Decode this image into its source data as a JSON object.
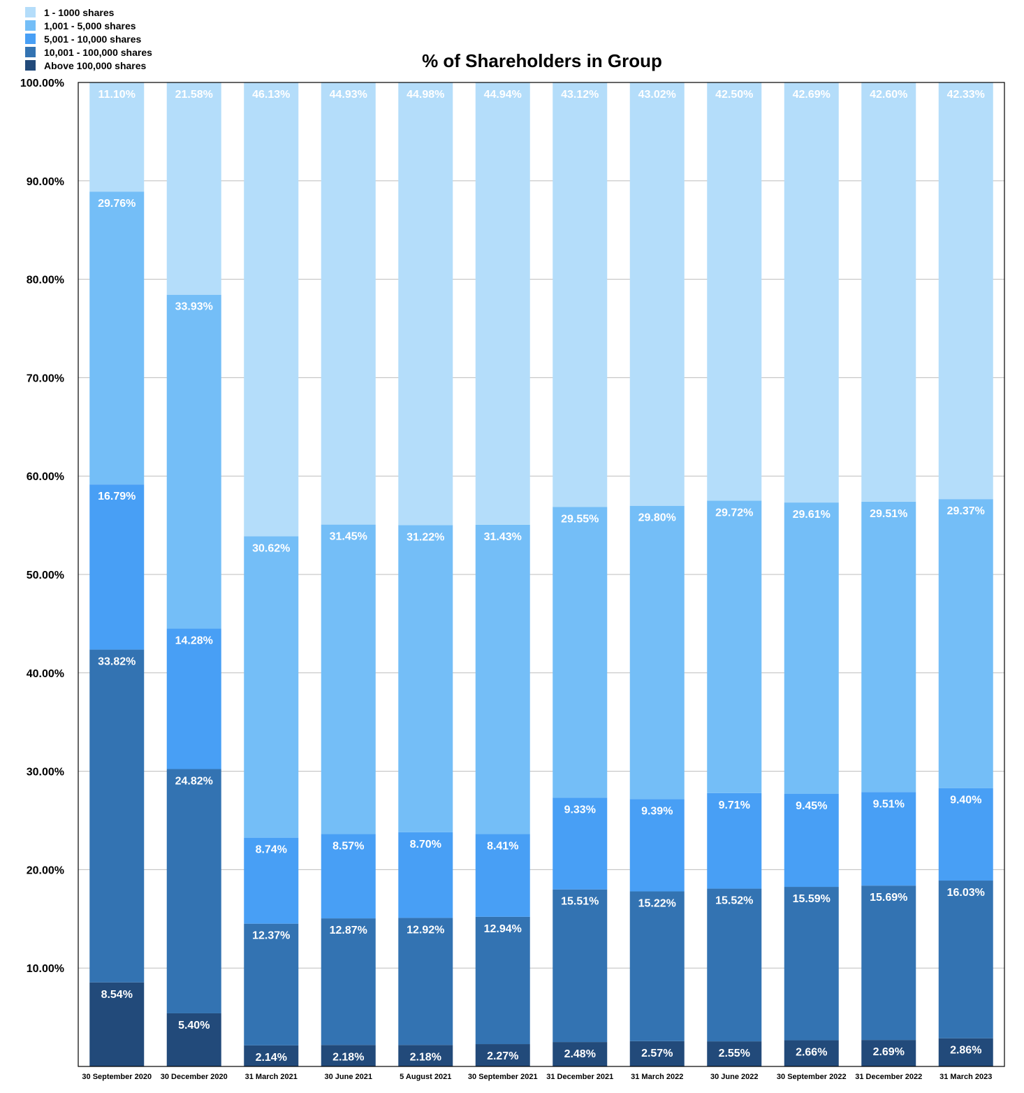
{
  "chart_data": {
    "type": "bar",
    "stacked": true,
    "title": "% of Shareholders in Group",
    "xlabel": "",
    "ylabel": "",
    "ylim": [
      0,
      100
    ],
    "yticks": [
      "10.00%",
      "20.00%",
      "30.00%",
      "40.00%",
      "50.00%",
      "60.00%",
      "70.00%",
      "80.00%",
      "90.00%",
      "100.00%"
    ],
    "grid": true,
    "legend_position": "top-left",
    "categories": [
      "30 September 2020",
      "30 December 2020",
      "31 March 2021",
      "30 June 2021",
      "5 August 2021",
      "30 September 2021",
      "31 December 2021",
      "31 March 2022",
      "30 June 2022",
      "30 September 2022",
      "31 December 2022",
      "31 March 2023"
    ],
    "series": [
      {
        "name": "Above 100,000 shares",
        "color": "#224A7A",
        "values": [
          8.54,
          5.4,
          2.14,
          2.18,
          2.18,
          2.27,
          2.48,
          2.57,
          2.55,
          2.66,
          2.69,
          2.86
        ],
        "labels": [
          "8.54%",
          "5.40%",
          "2.14%",
          "2.18%",
          "2.18%",
          "2.27%",
          "2.48%",
          "2.57%",
          "2.55%",
          "2.66%",
          "2.69%",
          "2.86%"
        ]
      },
      {
        "name": "10,001 - 100,000 shares",
        "color": "#3373B2",
        "values": [
          33.82,
          24.82,
          12.37,
          12.87,
          12.92,
          12.94,
          15.51,
          15.22,
          15.52,
          15.59,
          15.69,
          16.03
        ],
        "labels": [
          "33.82%",
          "24.82%",
          "12.37%",
          "12.87%",
          "12.92%",
          "12.94%",
          "15.51%",
          "15.22%",
          "15.52%",
          "15.59%",
          "15.69%",
          "16.03%"
        ]
      },
      {
        "name": "5,001 - 10,000 shares",
        "color": "#489FF5",
        "values": [
          16.79,
          14.28,
          8.74,
          8.57,
          8.7,
          8.41,
          9.33,
          9.39,
          9.71,
          9.45,
          9.51,
          9.4
        ],
        "labels": [
          "16.79%",
          "14.28%",
          "8.74%",
          "8.57%",
          "8.70%",
          "8.41%",
          "9.33%",
          "9.39%",
          "9.71%",
          "9.45%",
          "9.51%",
          "9.40%"
        ]
      },
      {
        "name": "1,001 - 5,000 shares",
        "color": "#74BEF7",
        "values": [
          29.76,
          33.93,
          30.62,
          31.45,
          31.22,
          31.43,
          29.55,
          29.8,
          29.72,
          29.61,
          29.51,
          29.37
        ],
        "labels": [
          "29.76%",
          "33.93%",
          "30.62%",
          "31.45%",
          "31.22%",
          "31.43%",
          "29.55%",
          "29.80%",
          "29.72%",
          "29.61%",
          "29.51%",
          "29.37%"
        ]
      },
      {
        "name": "1 - 1000 shares",
        "color": "#B4DDFA",
        "values": [
          11.1,
          21.58,
          46.13,
          44.93,
          44.98,
          44.94,
          43.12,
          43.02,
          42.5,
          42.69,
          42.6,
          42.33
        ],
        "labels": [
          "11.10%",
          "21.58%",
          "46.13%",
          "44.93%",
          "44.98%",
          "44.94%",
          "43.12%",
          "43.02%",
          "42.50%",
          "42.69%",
          "42.60%",
          "42.33%"
        ]
      }
    ],
    "legend_order": [
      "1 - 1000 shares",
      "1,001 - 5,000 shares",
      "5,001 - 10,000 shares",
      "10,001 - 100,000 shares",
      "Above 100,000 shares"
    ]
  }
}
